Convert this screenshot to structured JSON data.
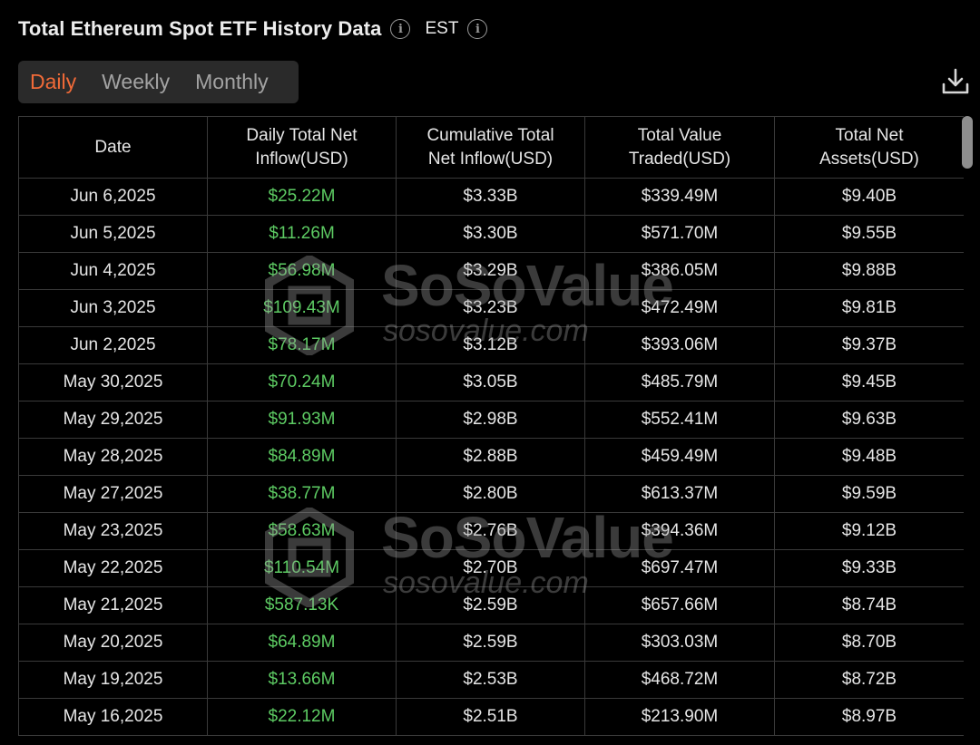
{
  "header": {
    "title": "Total Ethereum Spot ETF History Data",
    "timezone": "EST"
  },
  "tabs": [
    {
      "label": "Daily",
      "active": true
    },
    {
      "label": "Weekly",
      "active": false
    },
    {
      "label": "Monthly",
      "active": false
    }
  ],
  "table": {
    "columns": [
      [
        "Date",
        ""
      ],
      [
        "Daily Total Net",
        "Inflow(USD)"
      ],
      [
        "Cumulative Total",
        "Net Inflow(USD)"
      ],
      [
        "Total Value",
        "Traded(USD)"
      ],
      [
        "Total Net",
        "Assets(USD)"
      ]
    ],
    "rows": [
      [
        "Jun 6,2025",
        "$25.22M",
        "$3.33B",
        "$339.49M",
        "$9.40B"
      ],
      [
        "Jun 5,2025",
        "$11.26M",
        "$3.30B",
        "$571.70M",
        "$9.55B"
      ],
      [
        "Jun 4,2025",
        "$56.98M",
        "$3.29B",
        "$386.05M",
        "$9.88B"
      ],
      [
        "Jun 3,2025",
        "$109.43M",
        "$3.23B",
        "$472.49M",
        "$9.81B"
      ],
      [
        "Jun 2,2025",
        "$78.17M",
        "$3.12B",
        "$393.06M",
        "$9.37B"
      ],
      [
        "May 30,2025",
        "$70.24M",
        "$3.05B",
        "$485.79M",
        "$9.45B"
      ],
      [
        "May 29,2025",
        "$91.93M",
        "$2.98B",
        "$552.41M",
        "$9.63B"
      ],
      [
        "May 28,2025",
        "$84.89M",
        "$2.88B",
        "$459.49M",
        "$9.48B"
      ],
      [
        "May 27,2025",
        "$38.77M",
        "$2.80B",
        "$613.37M",
        "$9.59B"
      ],
      [
        "May 23,2025",
        "$58.63M",
        "$2.76B",
        "$394.36M",
        "$9.12B"
      ],
      [
        "May 22,2025",
        "$110.54M",
        "$2.70B",
        "$697.47M",
        "$9.33B"
      ],
      [
        "May 21,2025",
        "$587.13K",
        "$2.59B",
        "$657.66M",
        "$8.74B"
      ],
      [
        "May 20,2025",
        "$64.89M",
        "$2.59B",
        "$303.03M",
        "$8.70B"
      ],
      [
        "May 19,2025",
        "$13.66M",
        "$2.53B",
        "$468.72M",
        "$8.72B"
      ],
      [
        "May 16,2025",
        "$22.12M",
        "$2.51B",
        "$213.90M",
        "$8.97B"
      ]
    ]
  },
  "watermark": {
    "brand": "SoSoValue",
    "url": "sosovalue.com"
  },
  "colors": {
    "accent": "#f06a38",
    "inflow_positive": "#5dcb63",
    "background": "#000000",
    "tab_bar": "#2a2a2a",
    "grid": "#3a3a3a"
  },
  "icons": [
    "info-icon",
    "download-icon"
  ]
}
